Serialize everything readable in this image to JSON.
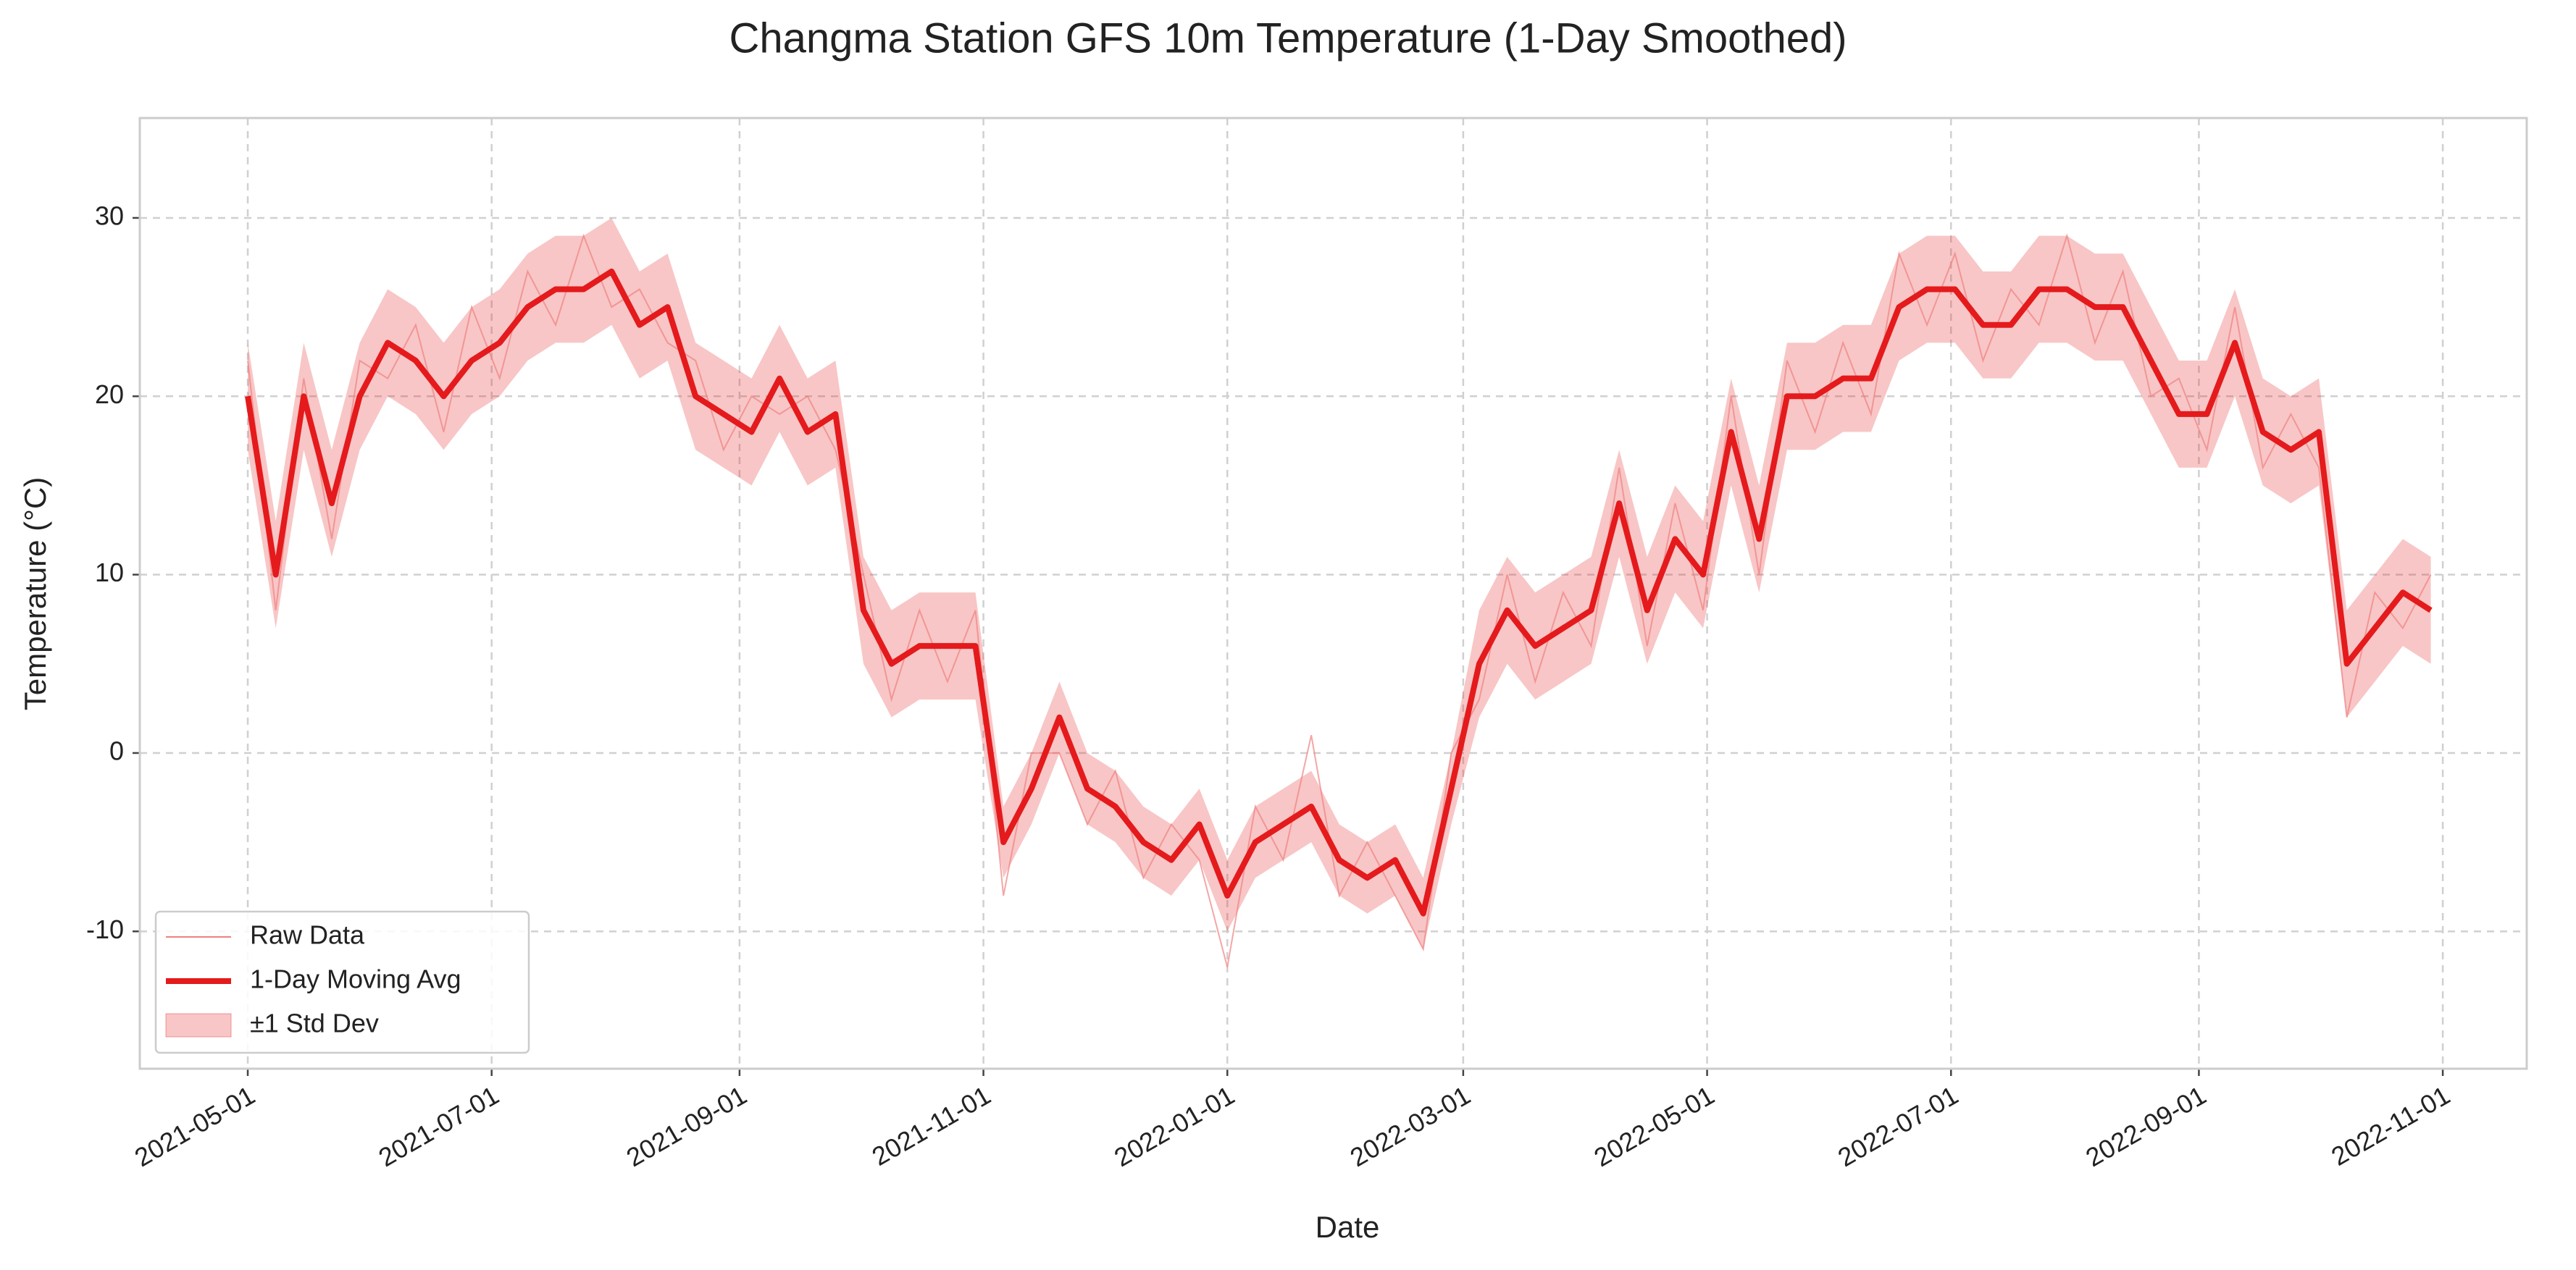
{
  "chart_data": {
    "type": "line",
    "title": "Changma Station GFS 10m Temperature (1-Day Smoothed)",
    "x_label": "Date",
    "y_label": "Temperature (°C)",
    "x": [
      "2021-05-01",
      "2021-05-08",
      "2021-05-15",
      "2021-05-22",
      "2021-05-29",
      "2021-06-05",
      "2021-06-12",
      "2021-06-19",
      "2021-06-26",
      "2021-07-03",
      "2021-07-10",
      "2021-07-17",
      "2021-07-24",
      "2021-07-31",
      "2021-08-07",
      "2021-08-14",
      "2021-08-21",
      "2021-08-28",
      "2021-09-04",
      "2021-09-11",
      "2021-09-18",
      "2021-09-25",
      "2021-10-02",
      "2021-10-09",
      "2021-10-16",
      "2021-10-23",
      "2021-10-30",
      "2021-11-06",
      "2021-11-13",
      "2021-11-20",
      "2021-11-27",
      "2021-12-04",
      "2021-12-11",
      "2021-12-18",
      "2021-12-25",
      "2022-01-01",
      "2022-01-08",
      "2022-01-15",
      "2022-01-22",
      "2022-01-29",
      "2022-02-05",
      "2022-02-12",
      "2022-02-19",
      "2022-02-26",
      "2022-03-05",
      "2022-03-12",
      "2022-03-19",
      "2022-03-26",
      "2022-04-02",
      "2022-04-09",
      "2022-04-16",
      "2022-04-23",
      "2022-04-30",
      "2022-05-07",
      "2022-05-14",
      "2022-05-21",
      "2022-05-28",
      "2022-06-04",
      "2022-06-11",
      "2022-06-18",
      "2022-06-25",
      "2022-07-02",
      "2022-07-09",
      "2022-07-16",
      "2022-07-23",
      "2022-07-30",
      "2022-08-06",
      "2022-08-13",
      "2022-08-20",
      "2022-08-27",
      "2022-09-03",
      "2022-09-10",
      "2022-09-17",
      "2022-09-24",
      "2022-10-01",
      "2022-10-08",
      "2022-10-15",
      "2022-10-22",
      "2022-10-29"
    ],
    "series": [
      {
        "name": "Raw Data",
        "color": "#f08080",
        "values": [
          22,
          8,
          21,
          12,
          22,
          21,
          24,
          18,
          25,
          21,
          27,
          24,
          29,
          25,
          26,
          23,
          22,
          17,
          20,
          19,
          20,
          17,
          10,
          3,
          8,
          4,
          8,
          -8,
          0,
          0,
          -4,
          -1,
          -7,
          -4,
          -6,
          -12,
          -3,
          -6,
          1,
          -8,
          -5,
          -8,
          -11,
          0,
          3,
          10,
          4,
          9,
          6,
          16,
          6,
          14,
          8,
          20,
          10,
          22,
          18,
          23,
          19,
          28,
          24,
          28,
          22,
          26,
          24,
          29,
          23,
          27,
          20,
          21,
          17,
          25,
          16,
          19,
          16,
          2,
          9,
          7,
          10
        ]
      },
      {
        "name": "1-Day Moving Avg",
        "color": "#e41a1c",
        "values": [
          20,
          10,
          20,
          14,
          20,
          23,
          22,
          20,
          22,
          23,
          25,
          26,
          26,
          27,
          24,
          25,
          20,
          19,
          18,
          21,
          18,
          19,
          8,
          5,
          6,
          6,
          6,
          -5,
          -2,
          2,
          -2,
          -3,
          -5,
          -6,
          -4,
          -8,
          -5,
          -4,
          -3,
          -6,
          -7,
          -6,
          -9,
          -2,
          5,
          8,
          6,
          7,
          8,
          14,
          8,
          12,
          10,
          18,
          12,
          20,
          20,
          21,
          21,
          25,
          26,
          26,
          24,
          24,
          26,
          26,
          25,
          25,
          22,
          19,
          19,
          23,
          18,
          17,
          18,
          5,
          7,
          9,
          8
        ]
      },
      {
        "name": "±1 Std Dev",
        "color": "#e41a1c",
        "values": [
          3,
          3,
          3,
          3,
          3,
          3,
          3,
          3,
          3,
          3,
          3,
          3,
          3,
          3,
          3,
          3,
          3,
          3,
          3,
          3,
          3,
          3,
          3,
          3,
          3,
          3,
          3,
          2,
          2,
          2,
          2,
          2,
          2,
          2,
          2,
          2,
          2,
          2,
          2,
          2,
          2,
          2,
          2,
          2,
          3,
          3,
          3,
          3,
          3,
          3,
          3,
          3,
          3,
          3,
          3,
          3,
          3,
          3,
          3,
          3,
          3,
          3,
          3,
          3,
          3,
          3,
          3,
          3,
          3,
          3,
          3,
          3,
          3,
          3,
          3,
          3,
          3,
          3,
          3
        ]
      }
    ],
    "xlim": [
      "2021-04-04",
      "2022-11-22"
    ],
    "xticks": [
      "2021-05-01",
      "2021-07-01",
      "2021-09-01",
      "2021-11-01",
      "2022-01-01",
      "2022-03-01",
      "2022-05-01",
      "2022-07-01",
      "2022-09-01",
      "2022-11-01"
    ],
    "ylim": [
      -17.7,
      35.6
    ],
    "yticks": [
      -10,
      0,
      10,
      20,
      30
    ],
    "grid": true,
    "legend": "lower left"
  }
}
